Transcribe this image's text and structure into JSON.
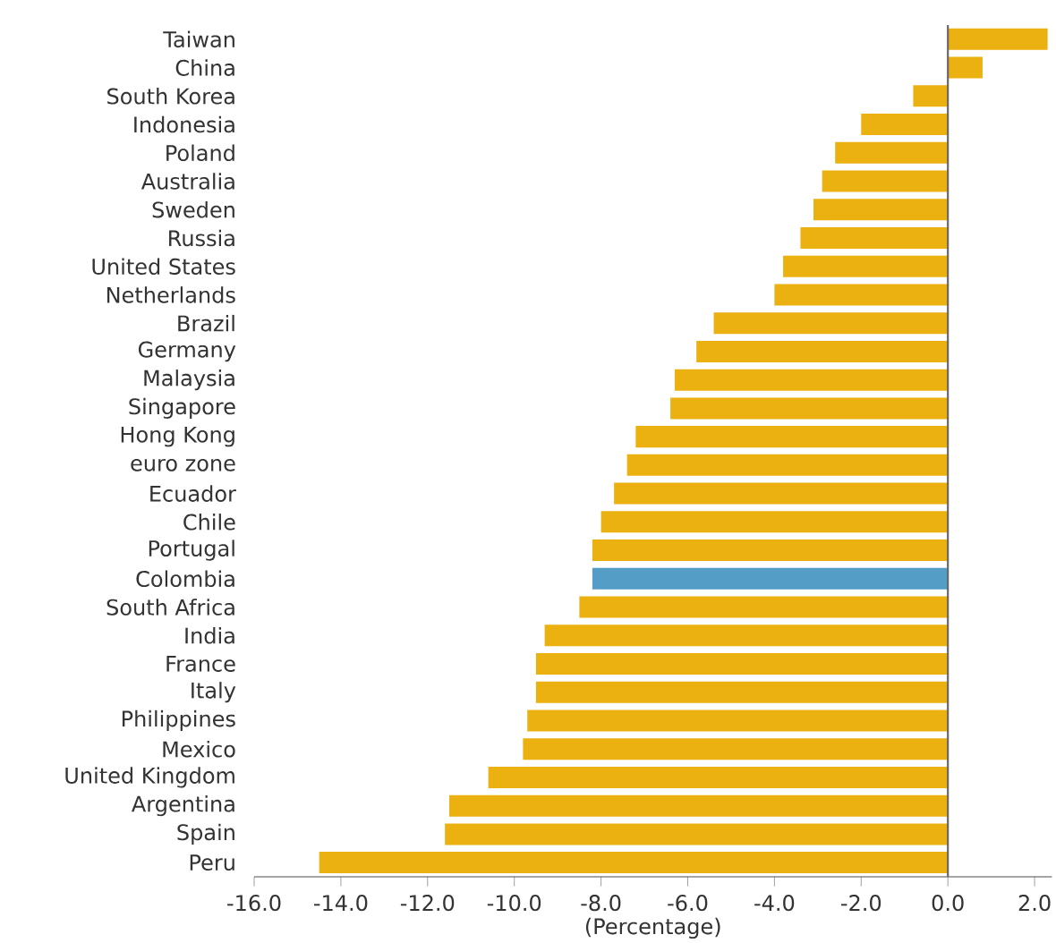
{
  "chart_data": {
    "type": "bar",
    "orientation": "horizontal",
    "xlabel": "(Percentage)",
    "categories": [
      "Taiwan",
      "China",
      "South Korea",
      "Indonesia",
      "Poland",
      "Australia",
      "Sweden",
      "Russia",
      "United States",
      "Netherlands",
      "Brazil",
      "Germany",
      "Malaysia",
      "Singapore",
      "Hong Kong",
      "euro zone",
      "Ecuador",
      "Chile",
      "Portugal",
      "Colombia",
      "South Africa",
      "India",
      "France",
      "Italy",
      "Philippines",
      "Mexico",
      "United Kingdom",
      "Argentina",
      "Spain",
      "Peru"
    ],
    "values": [
      2.3,
      0.8,
      -0.8,
      -2.0,
      -2.6,
      -2.9,
      -3.1,
      -3.4,
      -3.8,
      -4.0,
      -5.4,
      -5.8,
      -6.3,
      -6.4,
      -7.2,
      -7.4,
      -7.7,
      -8.0,
      -8.2,
      -8.2,
      -8.5,
      -9.3,
      -9.5,
      -9.5,
      -9.7,
      -9.8,
      -10.6,
      -11.5,
      -11.6,
      -14.5
    ],
    "colors": [
      "#ebb111",
      "#ebb111",
      "#ebb111",
      "#ebb111",
      "#ebb111",
      "#ebb111",
      "#ebb111",
      "#ebb111",
      "#ebb111",
      "#ebb111",
      "#ebb111",
      "#ebb111",
      "#ebb111",
      "#ebb111",
      "#ebb111",
      "#ebb111",
      "#ebb111",
      "#ebb111",
      "#ebb111",
      "#539dc6",
      "#ebb111",
      "#ebb111",
      "#ebb111",
      "#ebb111",
      "#ebb111",
      "#ebb111",
      "#ebb111",
      "#ebb111",
      "#ebb111",
      "#ebb111"
    ],
    "xlim": [
      -16,
      2.4
    ],
    "xticks": [
      {
        "value": -16,
        "label": "-16.0"
      },
      {
        "value": -14,
        "label": "-14.0"
      },
      {
        "value": -12,
        "label": "-12.0"
      },
      {
        "value": -10,
        "label": "-10.0"
      },
      {
        "value": -8,
        "label": "-8.0"
      },
      {
        "value": -6,
        "label": "-6.0"
      },
      {
        "value": -4,
        "label": "-4.0"
      },
      {
        "value": -2,
        "label": "-2.0"
      },
      {
        "value": 0,
        "label": "0.0"
      },
      {
        "value": 2,
        "label": "2.0"
      }
    ],
    "ref_lines": [
      {
        "axis": "x",
        "value": 0
      }
    ],
    "grid": false
  }
}
